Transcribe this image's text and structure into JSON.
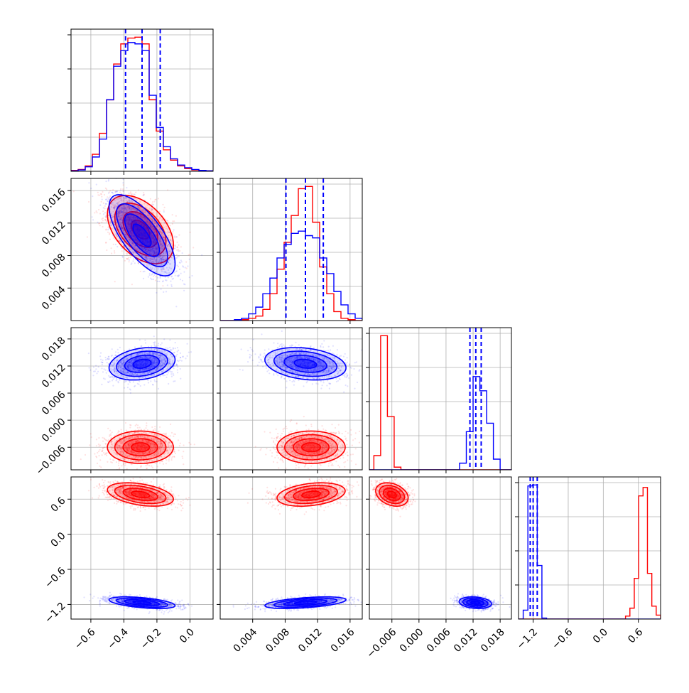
{
  "chart_data": {
    "type": "corner",
    "parameters": [
      {
        "range": [
          -0.72,
          0.14
        ],
        "ticks": [
          "−0.6",
          "−0.4",
          "−0.2",
          "0.0"
        ],
        "tick_values": [
          -0.6,
          -0.4,
          -0.2,
          0.0
        ]
      },
      {
        "range": [
          0.0,
          0.0175
        ],
        "ticks": [
          "0.004",
          "0.008",
          "0.012",
          "0.016"
        ],
        "tick_values": [
          0.004,
          0.008,
          0.012,
          0.016
        ]
      },
      {
        "range": [
          -0.011,
          0.0205
        ],
        "ticks": [
          "−0.006",
          "0.000",
          "0.006",
          "0.012",
          "0.018"
        ],
        "tick_values": [
          -0.006,
          0.0,
          0.006,
          0.012,
          0.018
        ]
      },
      {
        "range": [
          -1.45,
          0.98
        ],
        "ticks": [
          "−1.2",
          "−0.6",
          "0.0",
          "0.6"
        ],
        "tick_values": [
          -1.2,
          -0.6,
          0.0,
          0.6
        ]
      }
    ],
    "series": [
      {
        "color": "#ff0000",
        "means": [
          -0.3,
          0.0112,
          -0.006,
          0.68
        ],
        "sds": [
          0.1,
          0.0021,
          0.0018,
          0.1
        ],
        "corr": {
          "0-1": -0.45,
          "0-2": 0.0,
          "0-3": -0.4,
          "1-2": 0.0,
          "1-3": 0.3,
          "2-3": -0.3
        },
        "histograms": [
          {
            "edges": [
              -0.72,
              -0.677,
              -0.634,
              -0.591,
              -0.548,
              -0.505,
              -0.462,
              -0.419,
              -0.376,
              -0.333,
              -0.29,
              -0.247,
              -0.204,
              -0.161,
              -0.118,
              -0.075,
              -0.032,
              0.011,
              0.054,
              0.097,
              0.14
            ],
            "counts": [
              2,
              4,
              12,
              38,
              85,
              160,
              240,
              285,
              298,
              300,
              285,
              160,
              90,
              48,
              25,
              12,
              6,
              3,
              1,
              1
            ]
          },
          {
            "edges": [
              0.0,
              0.000875,
              0.00175,
              0.002625,
              0.0035,
              0.004375,
              0.00525,
              0.006125,
              0.007,
              0.007875,
              0.00875,
              0.009625,
              0.0105,
              0.011375,
              0.01225,
              0.013125,
              0.014,
              0.014875,
              0.01575,
              0.016625,
              0.0175
            ],
            "counts": [
              0,
              0,
              1,
              2,
              5,
              10,
              25,
              60,
              115,
              175,
              235,
              295,
              300,
              220,
              120,
              60,
              20,
              5,
              2,
              0
            ]
          },
          {
            "edges": [
              -0.01,
              -0.0085,
              -0.007,
              -0.0055,
              -0.004,
              -0.0025
            ],
            "counts": [
              32,
              302,
              120,
              6,
              0
            ]
          },
          {
            "edges": [
              0.38,
              0.455,
              0.53,
              0.605,
              0.68,
              0.755,
              0.83,
              0.905,
              0.98
            ],
            "counts": [
              6,
              22,
              82,
              248,
              265,
              92,
              26,
              8
            ]
          }
        ]
      },
      {
        "color": "#0000ff",
        "means": [
          -0.29,
          0.0105,
          0.0125,
          -1.17
        ],
        "sds": [
          0.1,
          0.0025,
          0.0018,
          0.05
        ],
        "corr": {
          "0-1": -0.7,
          "0-2": 0.25,
          "0-3": -0.5,
          "1-2": -0.25,
          "1-3": 0.5,
          "2-3": -0.2
        },
        "histograms": [
          {
            "edges": [
              -0.72,
              -0.677,
              -0.634,
              -0.591,
              -0.548,
              -0.505,
              -0.462,
              -0.419,
              -0.376,
              -0.333,
              -0.29,
              -0.247,
              -0.204,
              -0.161,
              -0.118,
              -0.075,
              -0.032,
              0.011,
              0.054,
              0.097,
              0.14
            ],
            "counts": [
              1,
              3,
              10,
              32,
              72,
              160,
              235,
              270,
              288,
              285,
              270,
              170,
              98,
              55,
              28,
              14,
              8,
              4,
              2,
              1
            ]
          },
          {
            "edges": [
              0.0,
              0.000875,
              0.00175,
              0.002625,
              0.0035,
              0.004375,
              0.00525,
              0.006125,
              0.007,
              0.007875,
              0.00875,
              0.009625,
              0.0105,
              0.011375,
              0.01225,
              0.013125,
              0.014,
              0.014875,
              0.01575,
              0.016625,
              0.0175
            ],
            "counts": [
              0,
              0,
              2,
              5,
              15,
              30,
              60,
              95,
              140,
              170,
              195,
              200,
              190,
              185,
              140,
              105,
              65,
              35,
              15,
              5
            ]
          },
          {
            "edges": [
              0.009,
              0.0105,
              0.012,
              0.0135,
              0.015,
              0.0165,
              0.018
            ],
            "counts": [
              15,
              86,
              210,
              178,
              105,
              24
            ]
          },
          {
            "edges": [
              -1.37,
              -1.29,
              -1.21,
              -1.13,
              -1.05,
              -0.97
            ],
            "counts": [
              18,
              268,
              270,
              108,
              2
            ]
          }
        ]
      }
    ],
    "quantile_lines": [
      [
        -0.39,
        -0.29,
        -0.18
      ],
      [
        0.0081,
        0.0105,
        0.0127
      ],
      [
        0.0113,
        0.0126,
        0.0138
      ],
      [
        -1.25,
        -1.2,
        -1.13
      ]
    ],
    "grid": true,
    "title": "",
    "xlabel": "",
    "ylabel": ""
  }
}
